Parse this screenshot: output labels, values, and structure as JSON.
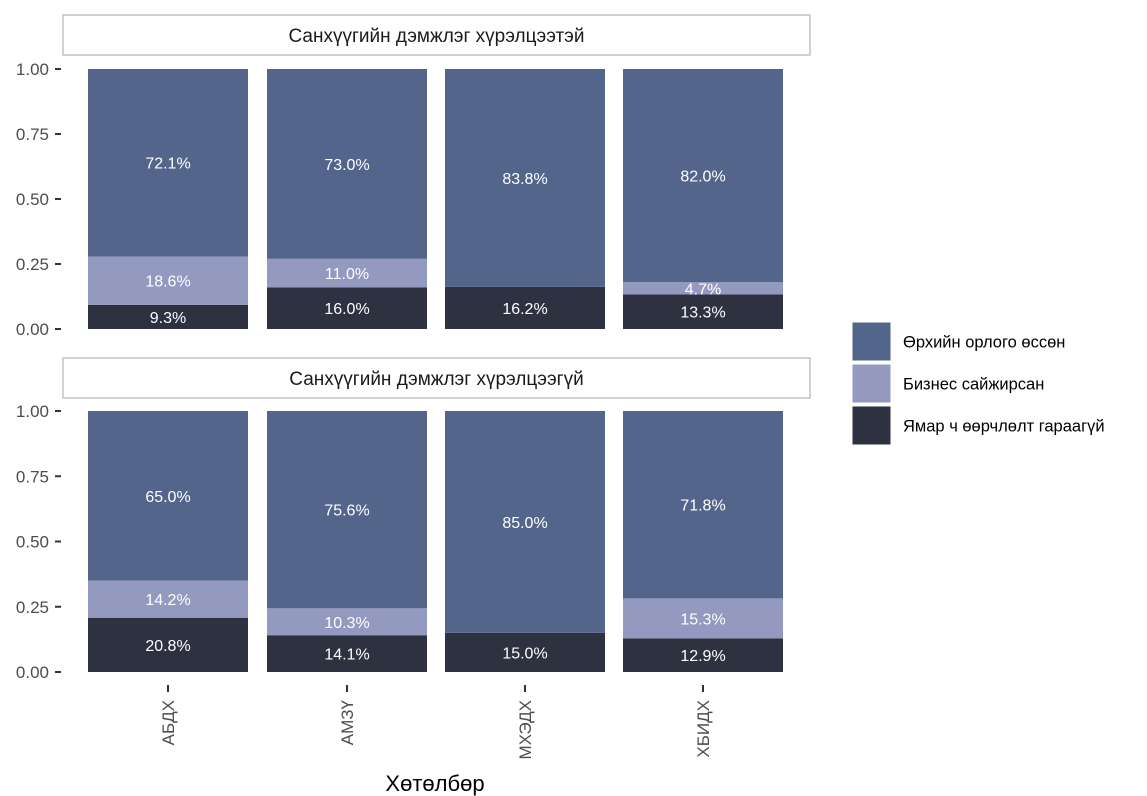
{
  "chart_data": {
    "type": "bar",
    "stacked": true,
    "xlabel": "Хөтөлбөр",
    "ylabel": "",
    "ylim": [
      0,
      1
    ],
    "yticks": [
      "0.00",
      "0.25",
      "0.50",
      "0.75",
      "1.00"
    ],
    "categories": [
      "АБДХ",
      "АМЗҮ",
      "МХЭДХ",
      "ХБИДХ"
    ],
    "legend_position": "right",
    "series": [
      {
        "name": "Өрхийн орлого өссөн",
        "color": "#53658b"
      },
      {
        "name": "Бизнес сайжирсан",
        "color": "#9499c0"
      },
      {
        "name": "Ямар ч өөрчлөлт гараагүй",
        "color": "#2d3140"
      }
    ],
    "panels": [
      {
        "title": "Санхүүгийн дэмжлэг хүрэлцээтэй",
        "series_values": [
          [
            0.721,
            0.73,
            0.838,
            0.82
          ],
          [
            0.186,
            0.11,
            0.0,
            0.047
          ],
          [
            0.093,
            0.16,
            0.162,
            0.133
          ]
        ],
        "labels": [
          [
            "72.1%",
            "73.0%",
            "83.8%",
            "82.0%"
          ],
          [
            "18.6%",
            "11.0%",
            "",
            "4.7%"
          ],
          [
            "9.3%",
            "16.0%",
            "16.2%",
            "13.3%"
          ]
        ]
      },
      {
        "title": "Санхүүгийн дэмжлэг хүрэлцээгүй",
        "series_values": [
          [
            0.65,
            0.756,
            0.85,
            0.718
          ],
          [
            0.142,
            0.103,
            0.0,
            0.153
          ],
          [
            0.208,
            0.141,
            0.15,
            0.129
          ]
        ],
        "labels": [
          [
            "65.0%",
            "75.6%",
            "85.0%",
            "71.8%"
          ],
          [
            "14.2%",
            "10.3%",
            "",
            "15.3%"
          ],
          [
            "20.8%",
            "14.1%",
            "15.0%",
            "12.9%"
          ]
        ]
      }
    ]
  }
}
